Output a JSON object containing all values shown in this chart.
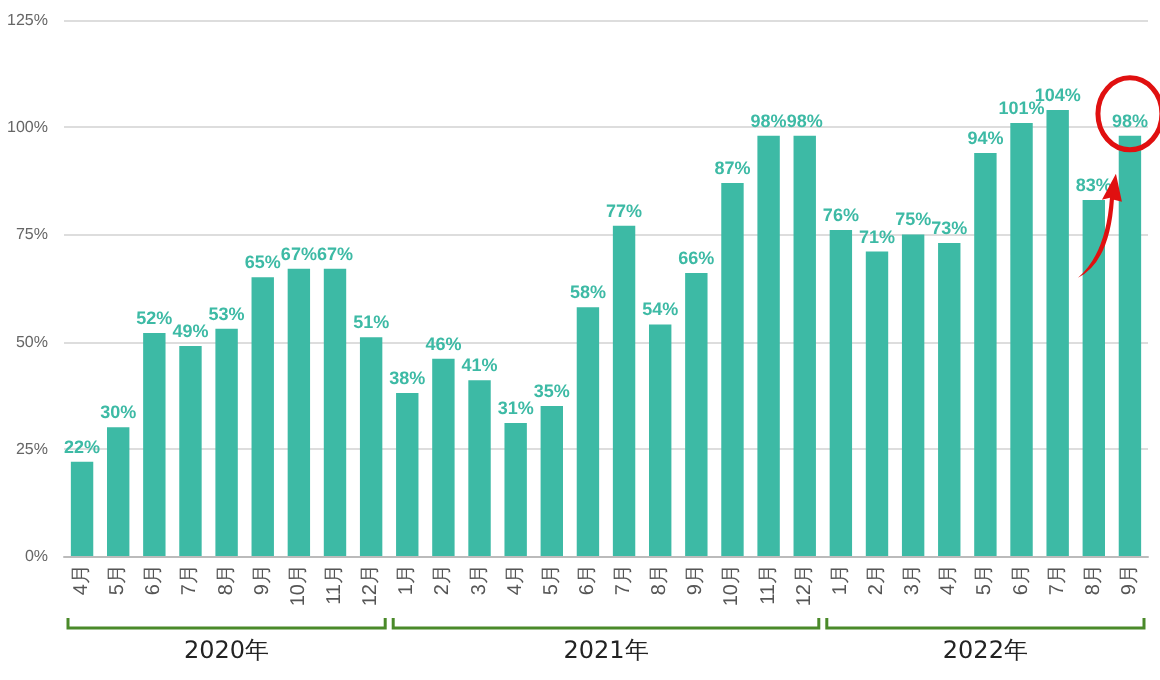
{
  "chart_data": {
    "type": "bar",
    "categories": [
      "4月",
      "5月",
      "6月",
      "7月",
      "8月",
      "9月",
      "10月",
      "11月",
      "12月",
      "1月",
      "2月",
      "3月",
      "4月",
      "5月",
      "6月",
      "7月",
      "8月",
      "9月",
      "10月",
      "11月",
      "12月",
      "1月",
      "2月",
      "3月",
      "4月",
      "5月",
      "6月",
      "7月",
      "8月",
      "9月"
    ],
    "values": [
      22,
      30,
      52,
      49,
      53,
      65,
      67,
      67,
      51,
      38,
      46,
      41,
      31,
      35,
      58,
      77,
      54,
      66,
      87,
      98,
      98,
      76,
      71,
      75,
      73,
      94,
      101,
      104,
      83,
      98
    ],
    "value_labels": [
      "22%",
      "30%",
      "52%",
      "49%",
      "53%",
      "65%",
      "67%",
      "67%",
      "51%",
      "38%",
      "46%",
      "41%",
      "31%",
      "35%",
      "58%",
      "77%",
      "54%",
      "66%",
      "87%",
      "98%",
      "98%",
      "76%",
      "71%",
      "75%",
      "73%",
      "94%",
      "101%",
      "104%",
      "83%",
      "98%"
    ],
    "color": "#3dbaa5",
    "ylim": [
      0,
      125
    ],
    "yticks": [
      {
        "value": 0,
        "label": "0%"
      },
      {
        "value": 25,
        "label": "25%"
      },
      {
        "value": 50,
        "label": "50%"
      },
      {
        "value": 75,
        "label": "75%"
      },
      {
        "value": 100,
        "label": "100%"
      },
      {
        "value": 125,
        "label": "125%"
      }
    ],
    "grid": "y",
    "annotations": [
      "2020年",
      "2021年",
      "2022年"
    ]
  }
}
